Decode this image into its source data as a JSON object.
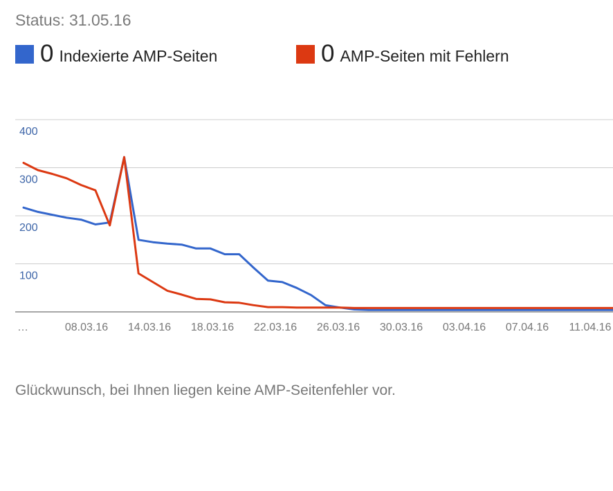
{
  "status": "Status: 31.05.16",
  "legend": [
    {
      "count": "0",
      "label": "Indexierte AMP-Seiten",
      "color": "#3366cc"
    },
    {
      "count": "0",
      "label": "AMP-Seiten mit Fehlern",
      "color": "#dc3912"
    }
  ],
  "message": "Glückwunsch, bei Ihnen liegen keine AMP-Seitenfehler vor.",
  "chart_data": {
    "type": "line",
    "ylim": [
      0,
      400
    ],
    "y_ticks": [
      "400",
      "300",
      "200",
      "100"
    ],
    "x_tick_labels": [
      "…",
      "08.03.16",
      "14.03.16",
      "18.03.16",
      "22.03.16",
      "26.03.16",
      "30.03.16",
      "03.04.16",
      "07.04.16",
      "11.04.16"
    ],
    "grid": true,
    "legend_position": "top",
    "series": [
      {
        "name": "Indexierte AMP-Seiten",
        "color": "#3366cc",
        "values": [
          217,
          208,
          202,
          196,
          192,
          182,
          186,
          322,
          150,
          145,
          142,
          140,
          132,
          132,
          120,
          120,
          92,
          65,
          62,
          50,
          35,
          14,
          9,
          5,
          4,
          4,
          4,
          4,
          4,
          4,
          4,
          4,
          4,
          4,
          4,
          4,
          4,
          4,
          4,
          4,
          4,
          4
        ]
      },
      {
        "name": "AMP-Seiten mit Fehlern",
        "color": "#dc3912",
        "values": [
          310,
          295,
          287,
          278,
          264,
          253,
          180,
          322,
          80,
          62,
          44,
          36,
          27,
          26,
          20,
          19,
          14,
          10,
          10,
          9,
          9,
          9,
          9,
          8,
          8,
          8,
          8,
          8,
          8,
          8,
          8,
          8,
          8,
          8,
          8,
          8,
          8,
          8,
          8,
          8,
          8,
          8
        ]
      }
    ]
  }
}
